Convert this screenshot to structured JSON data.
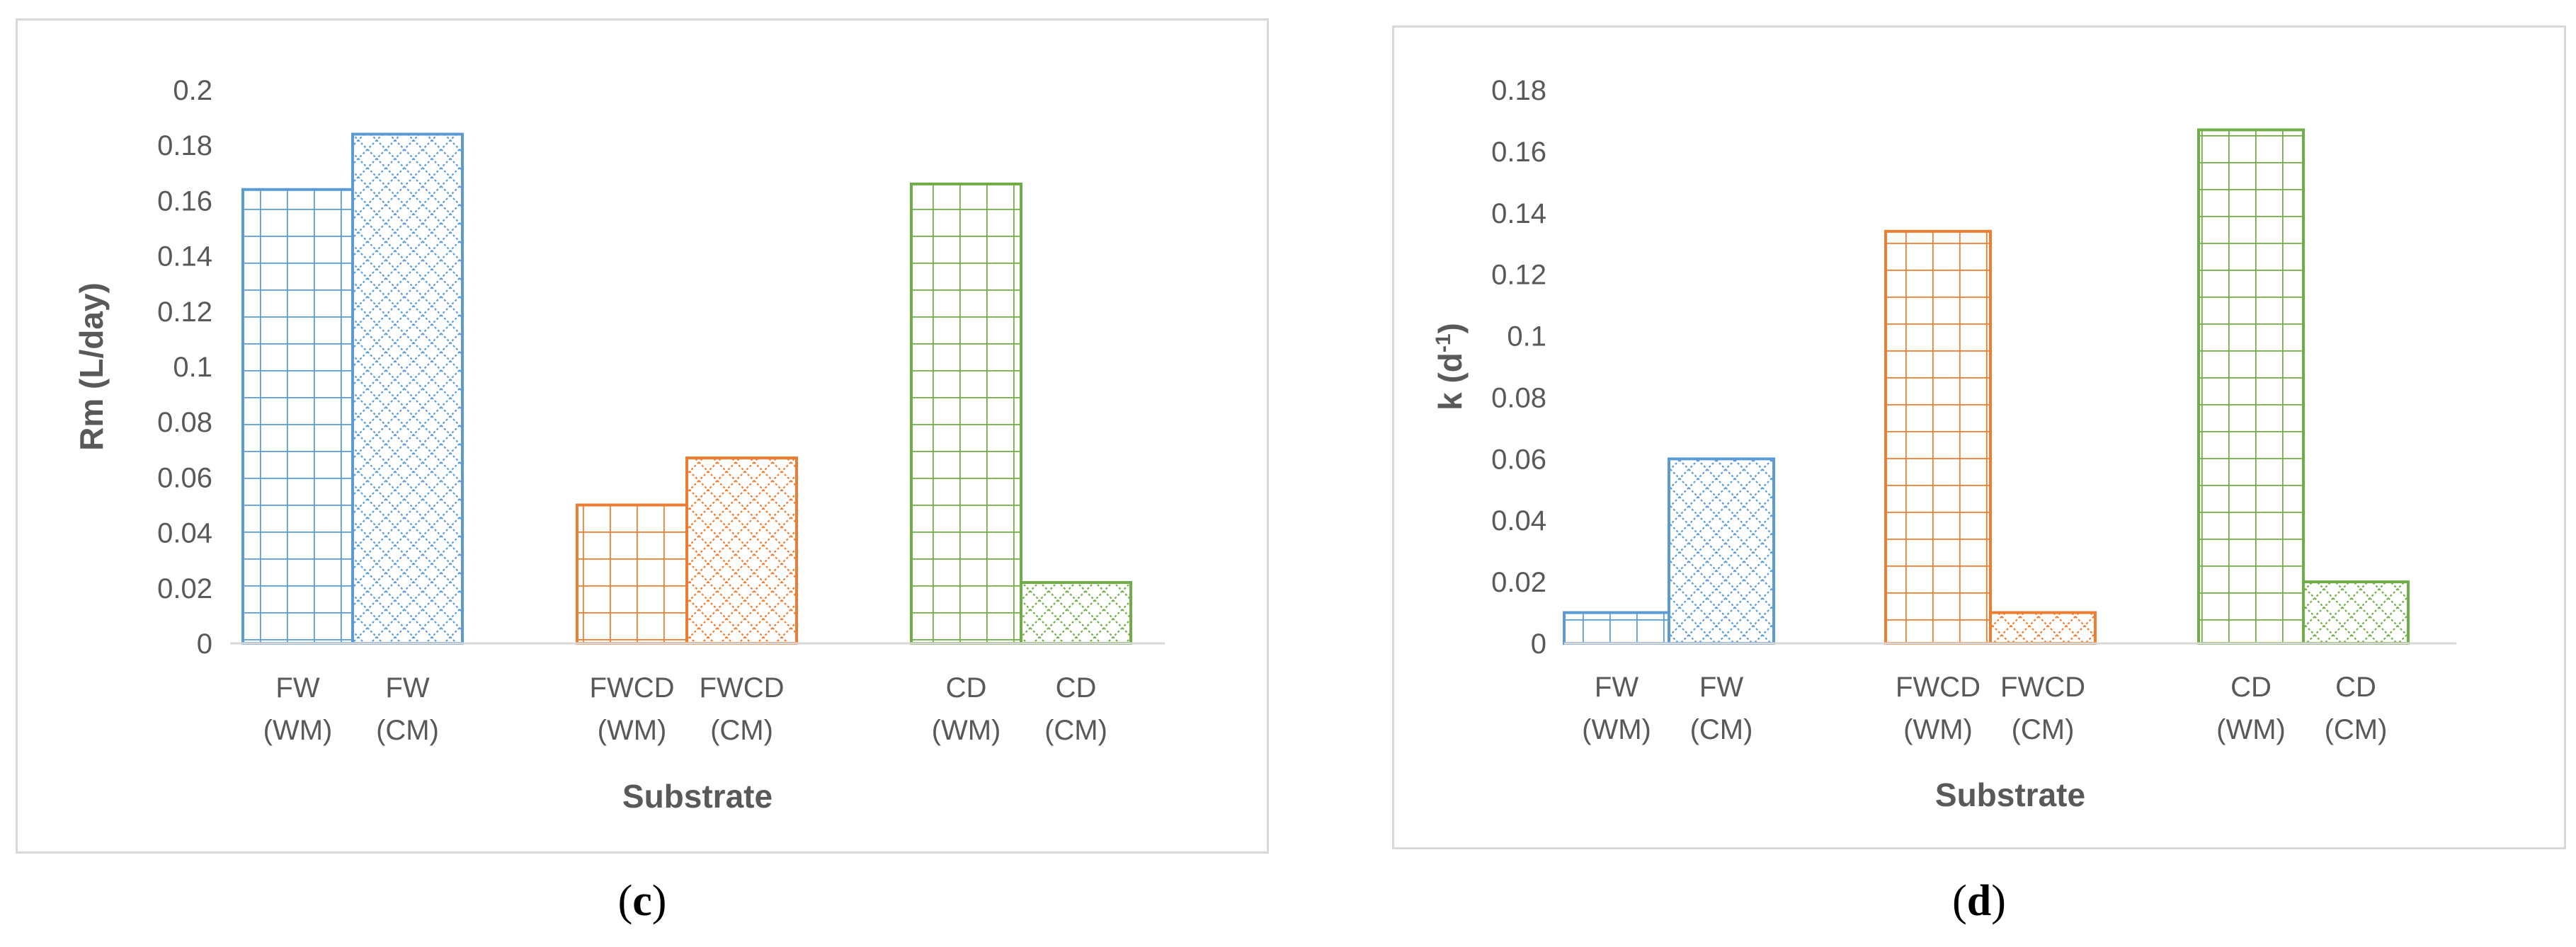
{
  "chart_data": [
    {
      "type": "bar",
      "panel": "c",
      "categories": [
        "FW (WM)",
        "FW (CM)",
        "FWCD (WM)",
        "FWCD (CM)",
        "CD (WM)",
        "CD (CM)"
      ],
      "groups": [
        {
          "name": "FW",
          "color": "#5b9bd5",
          "bars": [
            {
              "label": [
                "FW",
                "(WM)"
              ],
              "value": 0.164,
              "pattern": "grid"
            },
            {
              "label": [
                "FW",
                "(CM)"
              ],
              "value": 0.184,
              "pattern": "diamond"
            }
          ]
        },
        {
          "name": "FWCD",
          "color": "#ed7d31",
          "bars": [
            {
              "label": [
                "FWCD",
                "(WM)"
              ],
              "value": 0.05,
              "pattern": "grid"
            },
            {
              "label": [
                "FWCD",
                "(CM)"
              ],
              "value": 0.067,
              "pattern": "diamond"
            }
          ]
        },
        {
          "name": "CD",
          "color": "#70ad47",
          "bars": [
            {
              "label": [
                "CD",
                "(WM)"
              ],
              "value": 0.166,
              "pattern": "grid"
            },
            {
              "label": [
                "CD",
                "(CM)"
              ],
              "value": 0.022,
              "pattern": "diamond"
            }
          ]
        }
      ],
      "xlabel": "Substrate",
      "ylabel": "Rm (L/day)",
      "ylim": [
        0,
        0.2
      ],
      "yticks": [
        "0",
        "0.02",
        "0.04",
        "0.06",
        "0.08",
        "0.1",
        "0.12",
        "0.14",
        "0.16",
        "0.18",
        "0.2"
      ],
      "grid": false,
      "legend": "none"
    },
    {
      "type": "bar",
      "panel": "d",
      "categories": [
        "FW (WM)",
        "FW (CM)",
        "FWCD (WM)",
        "FWCD (CM)",
        "CD (WM)",
        "CD (CM)"
      ],
      "groups": [
        {
          "name": "FW",
          "color": "#5b9bd5",
          "bars": [
            {
              "label": [
                "FW",
                "(WM)"
              ],
              "value": 0.01,
              "pattern": "grid"
            },
            {
              "label": [
                "FW",
                "(CM)"
              ],
              "value": 0.06,
              "pattern": "diamond"
            }
          ]
        },
        {
          "name": "FWCD",
          "color": "#ed7d31",
          "bars": [
            {
              "label": [
                "FWCD",
                "(WM)"
              ],
              "value": 0.134,
              "pattern": "grid"
            },
            {
              "label": [
                "FWCD",
                "(CM)"
              ],
              "value": 0.01,
              "pattern": "diamond"
            }
          ]
        },
        {
          "name": "CD",
          "color": "#70ad47",
          "bars": [
            {
              "label": [
                "CD",
                "(WM)"
              ],
              "value": 0.167,
              "pattern": "grid"
            },
            {
              "label": [
                "CD",
                "(CM)"
              ],
              "value": 0.02,
              "pattern": "diamond"
            }
          ]
        }
      ],
      "xlabel": "Substrate",
      "ylabel": "k (d",
      "ylabel_superscript": "-1",
      "ylabel_suffix": ")",
      "ylim": [
        0,
        0.18
      ],
      "yticks": [
        "0",
        "0.02",
        "0.04",
        "0.06",
        "0.08",
        "0.1",
        "0.12",
        "0.14",
        "0.16",
        "0.18"
      ],
      "grid": false,
      "legend": "none"
    }
  ],
  "captions": [
    {
      "open": "(",
      "letter": "c",
      "close": ")"
    },
    {
      "open": "(",
      "letter": "d",
      "close": ")"
    }
  ]
}
